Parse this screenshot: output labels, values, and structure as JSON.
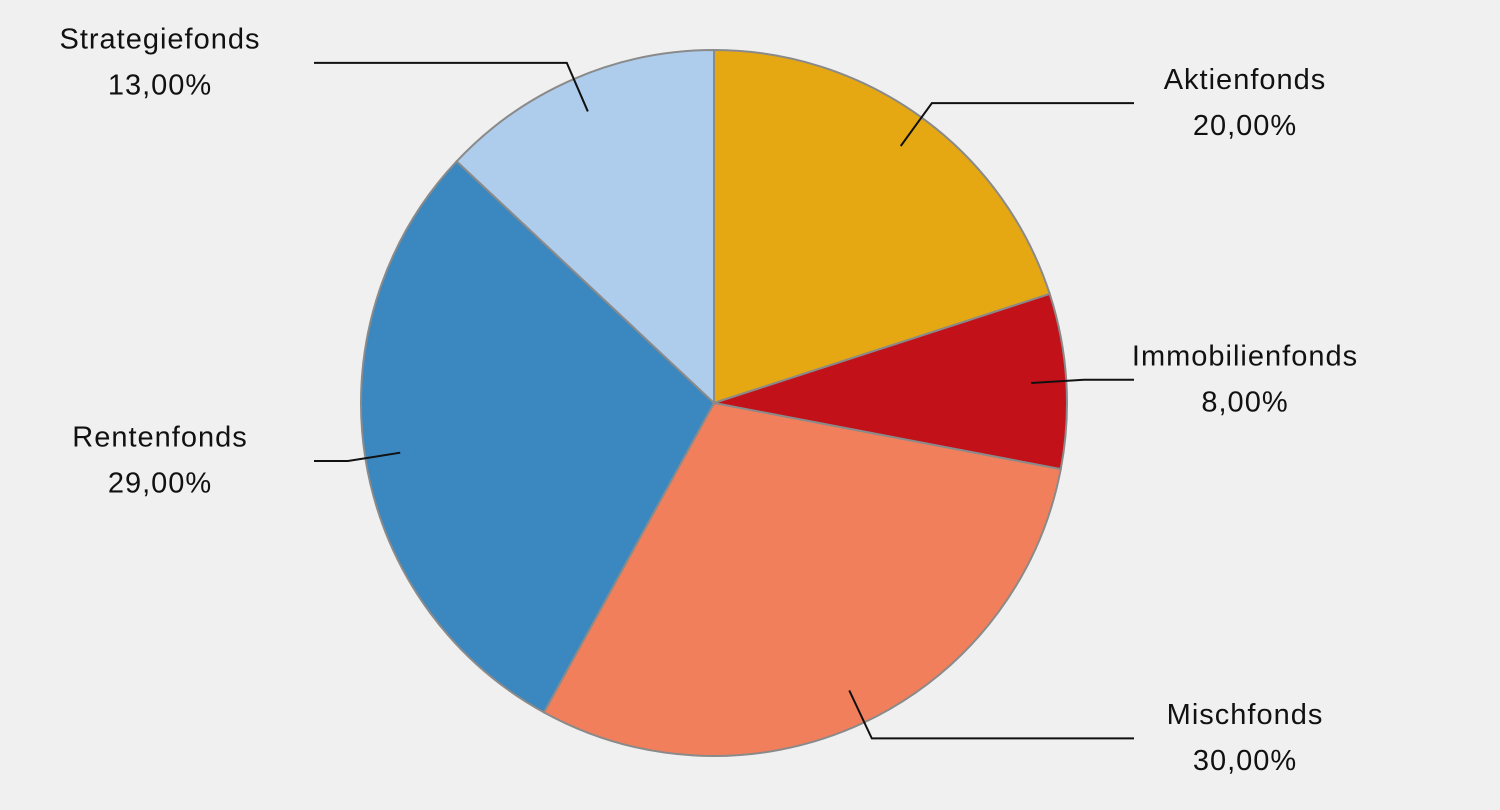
{
  "chart_data": {
    "type": "pie",
    "categories": [
      "Aktienfonds",
      "Immobilienfonds",
      "Mischfonds",
      "Rentenfonds",
      "Strategiefonds"
    ],
    "values": [
      20,
      8,
      30,
      29,
      13
    ],
    "value_labels": [
      "20,00%",
      "8,00%",
      "30,00%",
      "29,00%",
      "13,00%"
    ],
    "colors": [
      "#e5a812",
      "#c3111a",
      "#f27f5b",
      "#3b87c0",
      "#aecdec"
    ]
  }
}
